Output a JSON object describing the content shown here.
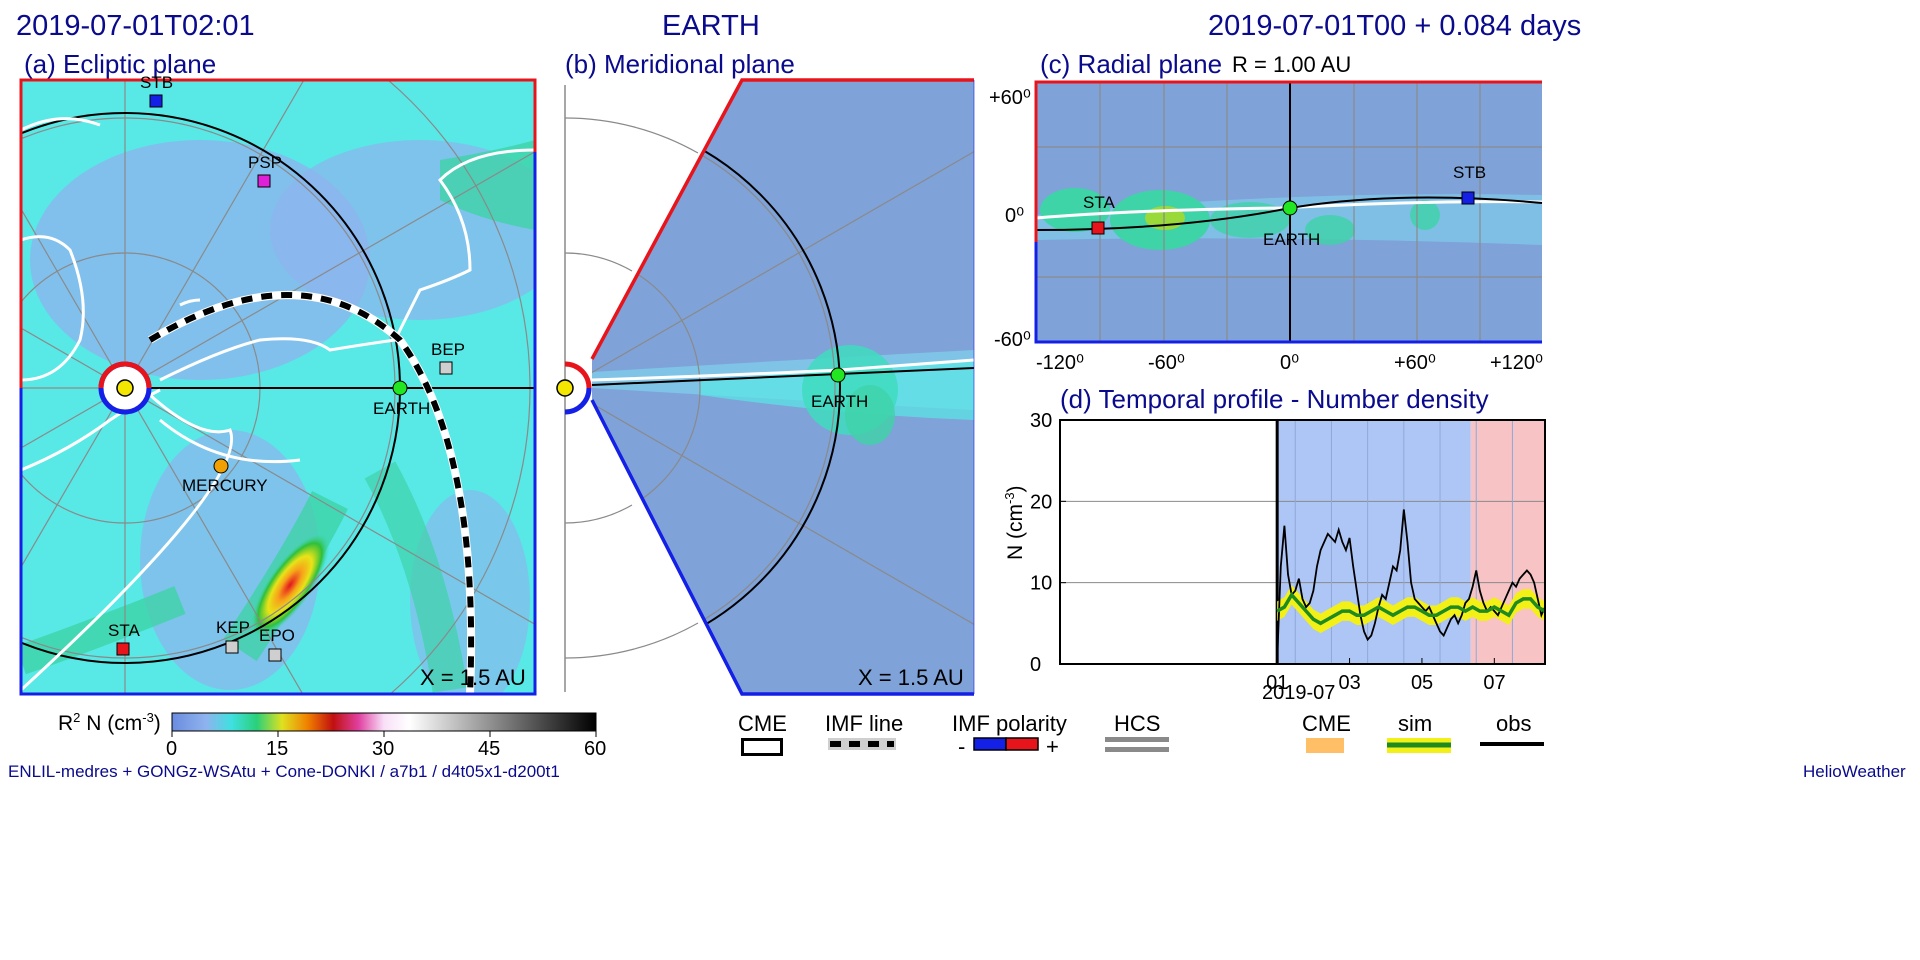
{
  "header": {
    "left_time": "2019-07-01T02:01",
    "center_title": "EARTH",
    "right_time": "2019-07-01T00 +  0.084 days"
  },
  "panels": {
    "ecliptic": {
      "title": "(a) Ecliptic plane",
      "scale_label": "X = 1.5 AU",
      "labels": {
        "stb": "STB",
        "psp": "PSP",
        "bep": "BEP",
        "earth": "EARTH",
        "mercury": "MERCURY",
        "sta": "STA",
        "kep": "KEP",
        "epo": "EPO"
      }
    },
    "meridional": {
      "title": "(b) Meridional plane",
      "scale_label": "X = 1.5 AU",
      "labels": {
        "earth": "EARTH"
      }
    },
    "radial": {
      "title": "(c) Radial plane",
      "subtitle": "R = 1.00 AU",
      "x_ticks": [
        "-120⁰",
        "-60⁰",
        "0⁰",
        "+60⁰",
        "+120⁰"
      ],
      "y_ticks": [
        "+60⁰",
        "0⁰",
        "-60⁰"
      ],
      "labels": {
        "sta": "STA",
        "earth": "EARTH",
        "stb": "STB"
      }
    }
  },
  "colorbar": {
    "label_main": "R",
    "label_sup": "2",
    "label_mid": " N (cm",
    "label_sup2": "-3",
    "label_end": ")",
    "ticks": [
      "0",
      "15",
      "30",
      "45",
      "60"
    ]
  },
  "legend": {
    "cme": "CME",
    "imf_line": "IMF line",
    "imf_polarity": "IMF polarity",
    "minus": "-",
    "plus": "+",
    "hcs": "HCS",
    "cme2": "CME",
    "sim": "sim",
    "obs": "obs"
  },
  "footer": {
    "left": "ENLIL-medres + GONGz-WSAtu + Cone-DONKI / a7b1 / d4t05x1-d200t1",
    "right": "HelioWeather"
  },
  "colors": {
    "title_blue": "#0a0a8c",
    "positive": "#e8141c",
    "negative": "#1420e6",
    "sim": "#1f8a1f",
    "sim_band": "#f3f018",
    "cme": "#ffbf66",
    "obs": "#000000",
    "sw_background": "#7fa2d8"
  },
  "chart_data": [
    {
      "type": "line",
      "title": "(d) Temporal profile - Number density",
      "ylabel_main": "N (cm",
      "ylabel_sup": "-3",
      "ylabel_end": ")",
      "xlabel": "2019-07",
      "x_tick_labels": [
        "01",
        "03",
        "05",
        "07"
      ],
      "x_ticks_day": [
        1,
        3,
        5,
        7
      ],
      "y_ticks": [
        "30",
        "20",
        "10",
        "0"
      ],
      "ylim": [
        0,
        30
      ],
      "xlim_day": [
        -5.0,
        8.4
      ],
      "grid": true,
      "shaded_intervals": [
        {
          "from": 1.0,
          "to": 6.35,
          "color": "#aec6f5"
        },
        {
          "from": 6.35,
          "to": 8.4,
          "color": "#f7c3c5"
        }
      ],
      "series": [
        {
          "name": "obs",
          "color": "#000000",
          "x": [
            1.0,
            1.1,
            1.2,
            1.3,
            1.4,
            1.5,
            1.6,
            1.7,
            1.8,
            1.9,
            2.0,
            2.1,
            2.2,
            2.3,
            2.4,
            2.5,
            2.6,
            2.7,
            2.8,
            2.9,
            3.0,
            3.1,
            3.2,
            3.3,
            3.4,
            3.5,
            3.6,
            3.7,
            3.8,
            3.9,
            4.0,
            4.1,
            4.2,
            4.3,
            4.4,
            4.5,
            4.6,
            4.7,
            4.8,
            4.9,
            5.0,
            5.1,
            5.2,
            5.3,
            5.4,
            5.5,
            5.6,
            5.7,
            5.8,
            5.9,
            6.0,
            6.1,
            6.2,
            6.3,
            6.4,
            6.5,
            6.6,
            6.7,
            6.8,
            6.9,
            7.0,
            7.1,
            7.2,
            7.3,
            7.4,
            7.5,
            7.6,
            7.7,
            7.8,
            7.9,
            8.0,
            8.1,
            8.2,
            8.3,
            8.4
          ],
          "y": [
            0.5,
            12.0,
            17.0,
            11.0,
            8.5,
            9.0,
            10.5,
            8.0,
            7.0,
            7.5,
            9.0,
            12.0,
            14.0,
            15.0,
            16.0,
            15.5,
            15.0,
            16.5,
            15.0,
            14.0,
            15.5,
            12.0,
            9.0,
            6.0,
            4.0,
            3.0,
            3.5,
            5.0,
            7.0,
            8.5,
            8.0,
            10.0,
            12.0,
            11.5,
            14.0,
            19.0,
            15.0,
            10.0,
            8.0,
            7.5,
            7.0,
            6.5,
            7.0,
            6.0,
            5.0,
            4.0,
            3.5,
            4.5,
            5.5,
            6.0,
            5.0,
            6.0,
            7.5,
            8.0,
            9.5,
            11.5,
            9.0,
            7.5,
            6.5,
            7.0,
            6.5,
            6.0,
            7.0,
            8.0,
            9.0,
            10.0,
            9.5,
            10.5,
            11.0,
            11.5,
            11.0,
            10.0,
            8.0,
            6.0,
            7.0
          ]
        },
        {
          "name": "sim",
          "color": "#1f8a1f",
          "x": [
            1.0,
            1.2,
            1.4,
            1.6,
            1.8,
            2.0,
            2.2,
            2.4,
            2.6,
            2.8,
            3.0,
            3.2,
            3.4,
            3.6,
            3.8,
            4.0,
            4.2,
            4.4,
            4.6,
            4.8,
            5.0,
            5.2,
            5.4,
            5.6,
            5.8,
            6.0,
            6.2,
            6.4,
            6.6,
            6.8,
            7.0,
            7.2,
            7.4,
            7.6,
            7.8,
            8.0,
            8.2,
            8.4
          ],
          "y": [
            6.5,
            7.0,
            8.5,
            7.5,
            6.5,
            5.5,
            5.0,
            5.5,
            6.0,
            6.5,
            6.5,
            6.0,
            6.0,
            6.5,
            7.0,
            6.5,
            6.0,
            6.5,
            7.0,
            7.0,
            6.5,
            6.0,
            6.0,
            6.5,
            7.0,
            7.0,
            6.5,
            7.0,
            6.5,
            6.5,
            7.0,
            6.5,
            6.0,
            7.5,
            8.0,
            8.0,
            7.0,
            6.5
          ]
        }
      ]
    }
  ]
}
